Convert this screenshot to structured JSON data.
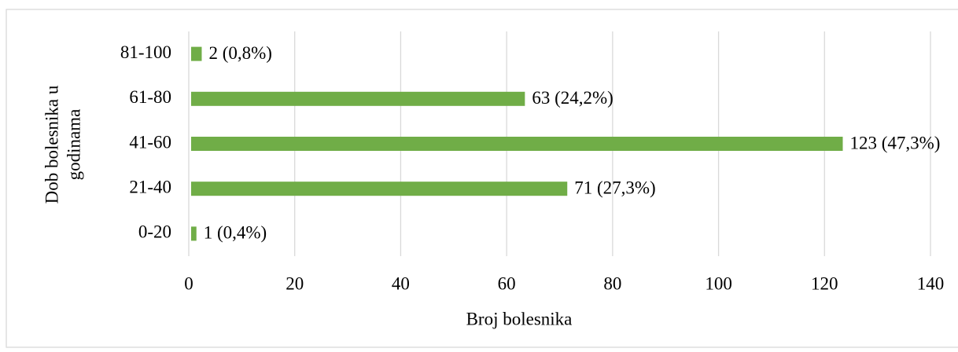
{
  "chart_data": {
    "type": "bar",
    "orientation": "horizontal",
    "categories": [
      "0-20",
      "21-40",
      "41-60",
      "61-80",
      "81-100"
    ],
    "values": [
      1,
      71,
      123,
      63,
      2
    ],
    "value_labels": [
      "1 (0,4%)",
      "71 (27,3%)",
      "123 (47,3%)",
      "63 (24,2%)",
      "2 (0,8%)"
    ],
    "color": "#70ad47",
    "xlabel": "Broj bolesnika",
    "ylabel": [
      "Dob bolesnika u",
      "godinama"
    ],
    "xlim": [
      0,
      140
    ],
    "xticks": [
      0,
      20,
      40,
      60,
      80,
      100,
      120,
      140
    ],
    "grid": true
  }
}
